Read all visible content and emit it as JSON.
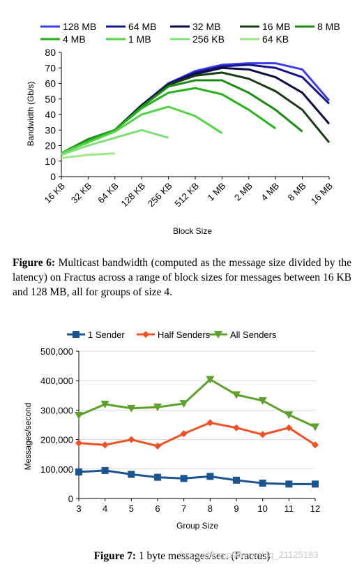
{
  "figure6": {
    "caption_label": "Figure 6:",
    "caption_text": "Multicast bandwidth (computed as the message size divided by the latency) on Fractus across a range of block sizes for messages between 16 KB and 128 MB, all for groups of size 4."
  },
  "figure7": {
    "caption_label": "Figure 7:",
    "caption_text": "1 byte messages/sec. (Fractus)"
  },
  "watermark": "https://blog.csdn.net/qq_21125183",
  "chart_data": [
    {
      "type": "line",
      "title": "",
      "xlabel": "Block Size",
      "ylabel": "Bandwidth (Gb/s)",
      "ylim": [
        0,
        80
      ],
      "yticks": [
        0,
        10,
        20,
        30,
        40,
        50,
        60,
        70,
        80
      ],
      "grid": false,
      "legend_position": "top",
      "categories": [
        "16 KB",
        "32 KB",
        "64 KB",
        "128 KB",
        "256 KB",
        "512 KB",
        "1 MB",
        "2 MB",
        "4 MB",
        "8 MB",
        "16 MB"
      ],
      "series": [
        {
          "name": "128 MB",
          "color": "#3d3df2",
          "values": [
            15,
            24,
            30,
            46,
            60,
            68,
            72,
            73,
            73,
            69,
            49
          ]
        },
        {
          "name": "64 MB",
          "color": "#14148a",
          "values": [
            15,
            24,
            30,
            46,
            60,
            67,
            71,
            72,
            70,
            64,
            47
          ]
        },
        {
          "name": "32 MB",
          "color": "#0a0a45",
          "values": [
            15,
            24,
            30,
            46,
            59,
            66,
            70,
            69,
            64,
            54,
            34
          ]
        },
        {
          "name": "16 MB",
          "color": "#173c12",
          "values": [
            15,
            24,
            30,
            45,
            59,
            65,
            67,
            63,
            55,
            43,
            22
          ]
        },
        {
          "name": "8 MB",
          "color": "#1d8a14",
          "values": [
            15,
            24,
            30,
            45,
            58,
            62,
            62,
            54,
            43,
            29,
            null
          ]
        },
        {
          "name": "4 MB",
          "color": "#23b21a",
          "values": [
            15,
            23,
            30,
            44,
            54,
            57,
            53,
            43,
            31,
            null,
            null
          ]
        },
        {
          "name": "1 MB",
          "color": "#52d444",
          "values": [
            15,
            22,
            29,
            40,
            45,
            39,
            28,
            null,
            null,
            null,
            null
          ]
        },
        {
          "name": "256 KB",
          "color": "#82e07a",
          "values": [
            14,
            20,
            25,
            30,
            25,
            null,
            null,
            null,
            null,
            null,
            null
          ]
        },
        {
          "name": "64 KB",
          "color": "#9ce888",
          "values": [
            12,
            14,
            15,
            null,
            null,
            null,
            null,
            null,
            null,
            null,
            null
          ]
        }
      ]
    },
    {
      "type": "line",
      "title": "",
      "xlabel": "Group Size",
      "ylabel": "Messages/second",
      "ylim": [
        0,
        500000
      ],
      "yticks": [
        "0",
        "100,000",
        "200,000",
        "300,000",
        "400,000",
        "500,000"
      ],
      "grid": true,
      "legend_position": "top",
      "categories": [
        "3",
        "4",
        "5",
        "6",
        "7",
        "8",
        "9",
        "10",
        "11",
        "12"
      ],
      "series": [
        {
          "name": "1 Sender",
          "color": "#1a5592",
          "marker": "square",
          "values": [
            90000,
            95000,
            82000,
            72000,
            68000,
            75000,
            62000,
            52000,
            49000,
            49000
          ]
        },
        {
          "name": "Half Senders",
          "color": "#f05025",
          "marker": "diamond",
          "values": [
            188000,
            182000,
            200000,
            178000,
            220000,
            257000,
            240000,
            217000,
            240000,
            182000
          ]
        },
        {
          "name": "All Senders",
          "color": "#5ba12a",
          "marker": "triangle-down",
          "values": [
            282000,
            320000,
            306000,
            310000,
            322000,
            404000,
            352000,
            332000,
            284000,
            243000
          ]
        }
      ]
    }
  ]
}
